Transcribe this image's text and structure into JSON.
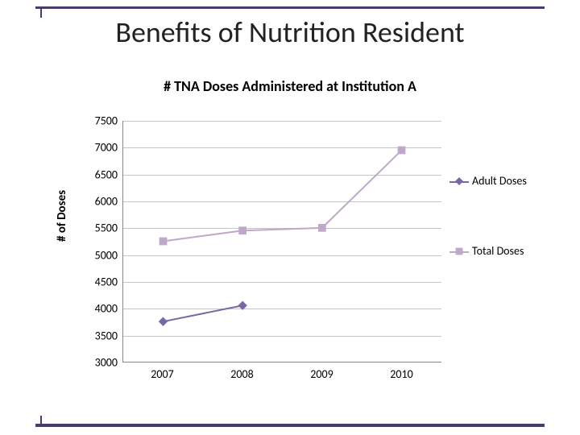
{
  "slide": {
    "title": "Benefits of Nutrition Resident",
    "accent_color": "#4b3a6e"
  },
  "chart": {
    "type": "line",
    "title": "# TNA Doses Administered at Institution A",
    "title_fontsize": 18,
    "title_fontweight": "bold",
    "ylabel": "# of Doses",
    "label_fontsize": 15,
    "background_color": "#ffffff",
    "grid_color": "#c5c5c5",
    "axis_color": "#888888",
    "ylim": [
      3000,
      7500
    ],
    "ytick_step": 500,
    "yticks": [
      3000,
      3500,
      4000,
      4500,
      5000,
      5500,
      6000,
      6500,
      7000,
      7500
    ],
    "xticks": [
      "2007",
      "2008",
      "2009",
      "2010"
    ],
    "series": [
      {
        "name": "Adult Doses",
        "color": "#7a68a6",
        "marker": "diamond",
        "marker_size": 8,
        "line_width": 2,
        "values": [
          3750,
          4050,
          null,
          null
        ]
      },
      {
        "name": "Total Doses",
        "color": "#bfa8c9",
        "marker": "square",
        "marker_size": 7,
        "line_width": 2,
        "values": [
          5250,
          5450,
          5500,
          6950
        ]
      }
    ]
  }
}
